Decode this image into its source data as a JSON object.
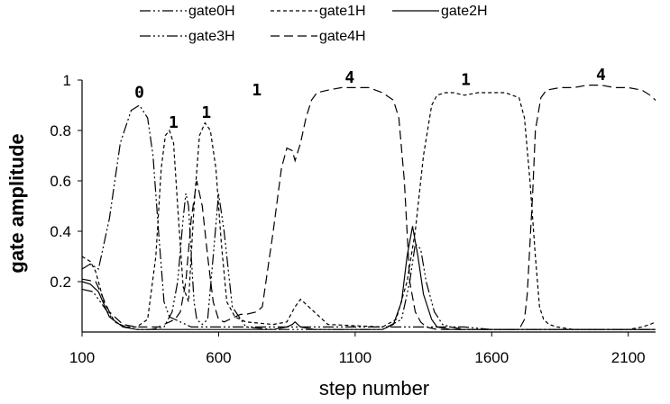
{
  "chart_data": {
    "type": "line",
    "title": "",
    "xlabel": "step number",
    "ylabel": "gate amplitude",
    "xlim": [
      100,
      2200
    ],
    "ylim": [
      0,
      1
    ],
    "x_ticks": [
      "100",
      "600",
      "1100",
      "1600",
      "2100"
    ],
    "y_ticks": [
      "0.2",
      "0.4",
      "0.6",
      "0.8",
      "1"
    ],
    "grid": false,
    "legend_position": "top-center",
    "annotations": [
      {
        "text": "0",
        "x": 310,
        "y": 0.93
      },
      {
        "text": "1",
        "x": 435,
        "y": 0.81
      },
      {
        "text": "1",
        "x": 555,
        "y": 0.85
      },
      {
        "text": "1",
        "x": 740,
        "y": 0.94
      },
      {
        "text": "4",
        "x": 1080,
        "y": 0.99
      },
      {
        "text": "1",
        "x": 1505,
        "y": 0.98
      },
      {
        "text": "4",
        "x": 2000,
        "y": 1.0
      }
    ],
    "series": [
      {
        "name": "gate0H",
        "dash": "12,3,2,3,2,3",
        "x": [
          100,
          130,
          160,
          200,
          240,
          280,
          310,
          340,
          360,
          380,
          400,
          420,
          440,
          460,
          480,
          500,
          550,
          600,
          700,
          800,
          900,
          1000,
          1100,
          1200,
          1300,
          1400,
          1500,
          1600,
          1700,
          1800,
          1900,
          2000,
          2100,
          2200
        ],
        "y": [
          0.25,
          0.27,
          0.25,
          0.45,
          0.75,
          0.88,
          0.9,
          0.85,
          0.7,
          0.4,
          0.12,
          0.06,
          0.05,
          0.04,
          0.03,
          0.02,
          0.02,
          0.02,
          0.02,
          0.02,
          0.02,
          0.02,
          0.02,
          0.02,
          0.02,
          0.02,
          0.02,
          0.01,
          0.01,
          0.01,
          0.01,
          0.01,
          0.01,
          0.01
        ]
      },
      {
        "name": "gate1H",
        "dash": "4,3",
        "x": [
          100,
          130,
          150,
          180,
          220,
          260,
          300,
          340,
          370,
          390,
          405,
          420,
          435,
          450,
          470,
          490,
          510,
          530,
          550,
          570,
          590,
          610,
          630,
          660,
          700,
          800,
          850,
          880,
          900,
          1000,
          1200,
          1250,
          1290,
          1320,
          1350,
          1380,
          1400,
          1430,
          1460,
          1500,
          1550,
          1600,
          1650,
          1700,
          1720,
          1740,
          1760,
          1775,
          1790,
          1810,
          1840,
          1900,
          2000,
          2100,
          2150,
          2180,
          2200
        ],
        "y": [
          0.3,
          0.28,
          0.24,
          0.12,
          0.04,
          0.02,
          0.02,
          0.05,
          0.3,
          0.65,
          0.78,
          0.8,
          0.75,
          0.5,
          0.18,
          0.12,
          0.5,
          0.78,
          0.83,
          0.8,
          0.65,
          0.35,
          0.12,
          0.06,
          0.04,
          0.03,
          0.04,
          0.1,
          0.13,
          0.03,
          0.02,
          0.05,
          0.2,
          0.4,
          0.7,
          0.9,
          0.94,
          0.95,
          0.95,
          0.94,
          0.95,
          0.95,
          0.95,
          0.93,
          0.85,
          0.6,
          0.3,
          0.1,
          0.05,
          0.03,
          0.02,
          0.01,
          0.01,
          0.01,
          0.02,
          0.03,
          0.04
        ]
      },
      {
        "name": "gate2H",
        "dash": "",
        "x": [
          100,
          130,
          160,
          200,
          250,
          300,
          400,
          500,
          600,
          700,
          800,
          850,
          870,
          880,
          900,
          950,
          1000,
          1100,
          1200,
          1240,
          1270,
          1290,
          1310,
          1330,
          1350,
          1380,
          1400,
          1450,
          1500,
          1600,
          1700,
          1800,
          1900,
          2000,
          2100,
          2200
        ],
        "y": [
          0.2,
          0.19,
          0.16,
          0.06,
          0.02,
          0.01,
          0.01,
          0.01,
          0.01,
          0.01,
          0.01,
          0.02,
          0.03,
          0.04,
          0.02,
          0.01,
          0.01,
          0.01,
          0.01,
          0.03,
          0.12,
          0.3,
          0.42,
          0.3,
          0.15,
          0.05,
          0.02,
          0.01,
          0.01,
          0.01,
          0.01,
          0.01,
          0.01,
          0.01,
          0.01,
          0.01
        ]
      },
      {
        "name": "gate3H",
        "dash": "12,3,2,3,2,3,2,3",
        "x": [
          100,
          140,
          180,
          220,
          260,
          300,
          350,
          400,
          430,
          450,
          470,
          480,
          490,
          500,
          510,
          520,
          540,
          560,
          580,
          600,
          620,
          650,
          700,
          800,
          900,
          1000,
          1200,
          1270,
          1300,
          1320,
          1340,
          1360,
          1390,
          1420,
          1450,
          1500,
          1600,
          1700,
          1800,
          1900,
          2000,
          2100,
          2200
        ],
        "y": [
          0.17,
          0.16,
          0.1,
          0.04,
          0.02,
          0.01,
          0.01,
          0.02,
          0.08,
          0.2,
          0.45,
          0.55,
          0.5,
          0.3,
          0.12,
          0.05,
          0.03,
          0.05,
          0.3,
          0.55,
          0.4,
          0.1,
          0.02,
          0.01,
          0.01,
          0.01,
          0.01,
          0.05,
          0.2,
          0.35,
          0.33,
          0.2,
          0.08,
          0.03,
          0.02,
          0.01,
          0.01,
          0.01,
          0.01,
          0.01,
          0.01,
          0.01,
          0.01
        ]
      },
      {
        "name": "gate4H",
        "dash": "10,5",
        "x": [
          100,
          150,
          200,
          250,
          300,
          350,
          380,
          400,
          420,
          440,
          460,
          480,
          500,
          520,
          540,
          560,
          580,
          600,
          620,
          640,
          660,
          680,
          700,
          740,
          760,
          800,
          830,
          850,
          870,
          880,
          900,
          920,
          940,
          960,
          1000,
          1050,
          1100,
          1150,
          1200,
          1240,
          1260,
          1280,
          1290,
          1300,
          1320,
          1340,
          1360,
          1400,
          1500,
          1600,
          1650,
          1700,
          1720,
          1730,
          1750,
          1760,
          1780,
          1800,
          1850,
          1900,
          1950,
          2000,
          2050,
          2100,
          2150,
          2180,
          2200
        ],
        "y": [
          0.21,
          0.2,
          0.08,
          0.03,
          0.02,
          0.02,
          0.02,
          0.03,
          0.04,
          0.05,
          0.08,
          0.2,
          0.45,
          0.6,
          0.5,
          0.3,
          0.12,
          0.05,
          0.04,
          0.05,
          0.06,
          0.07,
          0.07,
          0.08,
          0.1,
          0.4,
          0.65,
          0.73,
          0.72,
          0.68,
          0.75,
          0.85,
          0.92,
          0.95,
          0.96,
          0.97,
          0.97,
          0.97,
          0.95,
          0.92,
          0.85,
          0.6,
          0.4,
          0.2,
          0.08,
          0.04,
          0.02,
          0.01,
          0.01,
          0.01,
          0.01,
          0.01,
          0.05,
          0.15,
          0.55,
          0.8,
          0.93,
          0.96,
          0.97,
          0.97,
          0.98,
          0.98,
          0.97,
          0.97,
          0.96,
          0.94,
          0.92
        ]
      }
    ]
  }
}
